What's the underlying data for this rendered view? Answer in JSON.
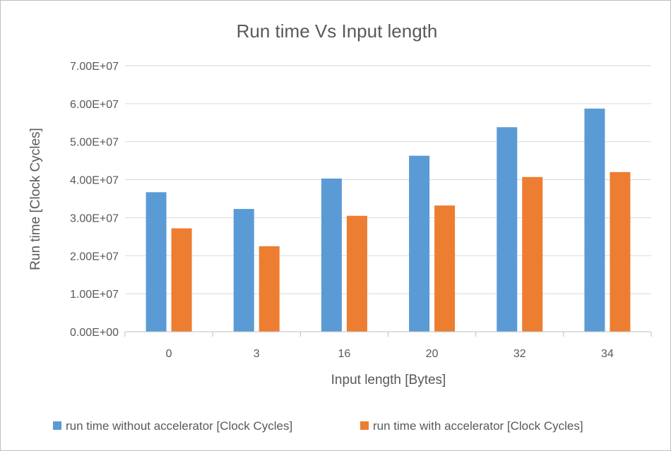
{
  "chart_data": {
    "type": "bar",
    "title": "Run time Vs Input length",
    "xlabel": "Input length [Bytes]",
    "ylabel": "Run time [Clock Cycles]",
    "categories": [
      "0",
      "3",
      "16",
      "20",
      "32",
      "34"
    ],
    "ylim": [
      0,
      70000000
    ],
    "yticks": [
      0,
      10000000,
      20000000,
      30000000,
      40000000,
      50000000,
      60000000,
      70000000
    ],
    "ytick_labels": [
      "0.00E+00",
      "1.00E+07",
      "2.00E+07",
      "3.00E+07",
      "4.00E+07",
      "5.00E+07",
      "6.00E+07",
      "7.00E+07"
    ],
    "grid": true,
    "legend_position": "bottom",
    "series": [
      {
        "name": "run time without accelerator [Clock Cycles]",
        "color": "#5b9bd5",
        "values": [
          36700000,
          32300000,
          40300000,
          46300000,
          53800000,
          58700000
        ]
      },
      {
        "name": "run time with accelerator [Clock Cycles]",
        "color": "#ed7d31",
        "values": [
          27200000,
          22500000,
          30500000,
          33200000,
          40700000,
          42000000
        ]
      }
    ]
  }
}
